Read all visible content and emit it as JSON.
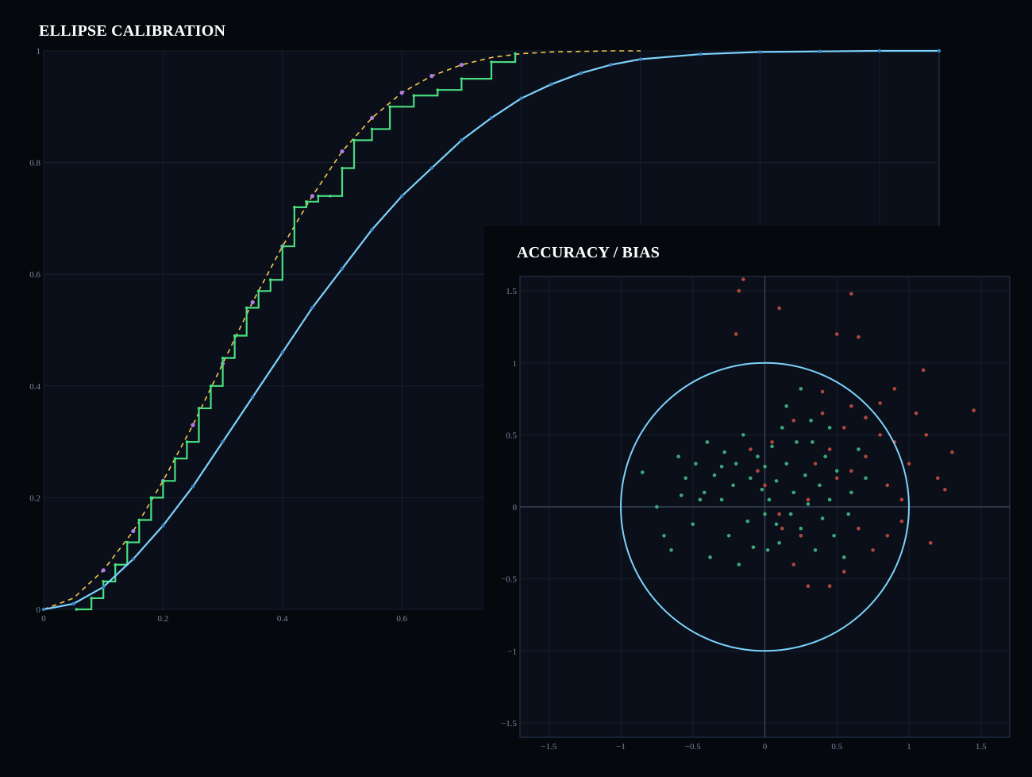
{
  "chart_data": [
    {
      "type": "line",
      "title": "ELLIPSE CALIBRATION",
      "xlabel": "",
      "ylabel": "",
      "xlim": [
        0,
        1.5
      ],
      "ylim": [
        0,
        1
      ],
      "x_ticks": [
        "0",
        "0.2",
        "0.4",
        "0.6"
      ],
      "y_ticks": [
        "0",
        "0.2",
        "0.4",
        "0.6",
        "0.8",
        "1"
      ],
      "grid": true,
      "legend": "none",
      "colors": {
        "theoretical": "#7dd3fc",
        "empirical": "#4ade80",
        "reference_dashed": "#f5c84c",
        "markers": "#b07ce6"
      },
      "series": [
        {
          "style": "solid-theoretical",
          "x": [
            0.0,
            0.05,
            0.1,
            0.15,
            0.2,
            0.25,
            0.3,
            0.35,
            0.4,
            0.45,
            0.5,
            0.55,
            0.6,
            0.65,
            0.7,
            0.75,
            0.8,
            0.85,
            0.9,
            0.95,
            1.0,
            1.1,
            1.2,
            1.3,
            1.4,
            1.5
          ],
          "y": [
            0.0,
            0.01,
            0.04,
            0.09,
            0.15,
            0.22,
            0.3,
            0.38,
            0.46,
            0.54,
            0.61,
            0.68,
            0.74,
            0.79,
            0.84,
            0.88,
            0.915,
            0.94,
            0.96,
            0.975,
            0.985,
            0.994,
            0.998,
            0.999,
            1.0,
            1.0
          ]
        },
        {
          "style": "empirical-step",
          "x": [
            0.055,
            0.08,
            0.1,
            0.12,
            0.14,
            0.16,
            0.18,
            0.2,
            0.22,
            0.24,
            0.26,
            0.28,
            0.3,
            0.32,
            0.34,
            0.36,
            0.38,
            0.4,
            0.42,
            0.44,
            0.46,
            0.48,
            0.5,
            0.52,
            0.55,
            0.58,
            0.62,
            0.66,
            0.7,
            0.75,
            0.79
          ],
          "y": [
            0.0,
            0.02,
            0.05,
            0.08,
            0.12,
            0.16,
            0.2,
            0.23,
            0.27,
            0.3,
            0.36,
            0.4,
            0.45,
            0.49,
            0.54,
            0.57,
            0.59,
            0.65,
            0.72,
            0.73,
            0.74,
            0.74,
            0.79,
            0.84,
            0.86,
            0.9,
            0.92,
            0.93,
            0.95,
            0.98,
            0.995
          ]
        },
        {
          "style": "dashed-reference",
          "x": [
            0.0,
            0.05,
            0.1,
            0.15,
            0.2,
            0.25,
            0.3,
            0.35,
            0.4,
            0.45,
            0.5,
            0.55,
            0.6,
            0.65,
            0.7,
            0.75,
            0.8,
            0.85,
            0.9,
            0.95,
            1.0
          ],
          "y": [
            0.0,
            0.02,
            0.07,
            0.14,
            0.23,
            0.33,
            0.44,
            0.55,
            0.65,
            0.74,
            0.82,
            0.88,
            0.925,
            0.955,
            0.975,
            0.988,
            0.995,
            0.998,
            0.999,
            1.0,
            1.0
          ]
        }
      ]
    },
    {
      "type": "scatter",
      "title": "ACCURACY / BIAS",
      "xlabel": "",
      "ylabel": "",
      "xlim": [
        -1.7,
        1.7
      ],
      "ylim": [
        -1.6,
        1.6
      ],
      "x_ticks": [
        "−1.5",
        "−1",
        "−0.5",
        "0",
        "0.5",
        "1",
        "1.5"
      ],
      "y_ticks": [
        "−1.5",
        "−1",
        "−0.5",
        "0",
        "0.5",
        "1",
        "1.5"
      ],
      "grid": true,
      "legend": "none",
      "unit_circle_radius": 1,
      "colors": {
        "circle": "#7dd3fc",
        "series_a": "#3fa67a",
        "series_b": "#b0473e"
      },
      "series": [
        {
          "style": "green",
          "points": [
            [
              -0.85,
              0.24
            ],
            [
              -0.6,
              0.35
            ],
            [
              -0.55,
              0.2
            ],
            [
              -0.48,
              0.3
            ],
            [
              -0.42,
              0.1
            ],
            [
              -0.4,
              0.45
            ],
            [
              -0.35,
              0.22
            ],
            [
              -0.3,
              0.05
            ],
            [
              -0.28,
              0.38
            ],
            [
              -0.22,
              0.15
            ],
            [
              -0.2,
              0.3
            ],
            [
              -0.15,
              0.5
            ],
            [
              -0.12,
              -0.1
            ],
            [
              -0.1,
              0.2
            ],
            [
              -0.05,
              0.35
            ],
            [
              -0.02,
              0.12
            ],
            [
              0.0,
              0.28
            ],
            [
              0.03,
              0.05
            ],
            [
              0.05,
              0.42
            ],
            [
              0.08,
              0.18
            ],
            [
              0.1,
              -0.25
            ],
            [
              0.12,
              0.55
            ],
            [
              0.15,
              0.3
            ],
            [
              0.18,
              -0.05
            ],
            [
              0.2,
              0.1
            ],
            [
              0.22,
              0.45
            ],
            [
              0.25,
              -0.15
            ],
            [
              0.28,
              0.22
            ],
            [
              0.3,
              0.02
            ],
            [
              0.32,
              0.6
            ],
            [
              0.35,
              -0.3
            ],
            [
              0.38,
              0.15
            ],
            [
              0.4,
              -0.08
            ],
            [
              0.42,
              0.35
            ],
            [
              0.45,
              0.05
            ],
            [
              0.48,
              -0.2
            ],
            [
              0.5,
              0.25
            ],
            [
              0.55,
              -0.35
            ],
            [
              0.6,
              0.1
            ],
            [
              0.65,
              0.4
            ],
            [
              -0.7,
              -0.2
            ],
            [
              -0.65,
              -0.3
            ],
            [
              -0.5,
              -0.12
            ],
            [
              -0.38,
              -0.35
            ],
            [
              -0.25,
              -0.2
            ],
            [
              -0.18,
              -0.4
            ],
            [
              -0.08,
              -0.28
            ],
            [
              0.02,
              -0.3
            ],
            [
              0.08,
              -0.12
            ],
            [
              0.15,
              0.7
            ],
            [
              0.25,
              0.82
            ],
            [
              0.0,
              -0.05
            ],
            [
              -0.3,
              0.28
            ],
            [
              -0.45,
              0.05
            ],
            [
              -0.58,
              0.08
            ],
            [
              -0.75,
              0.0
            ],
            [
              0.33,
              0.45
            ],
            [
              0.45,
              0.55
            ],
            [
              0.58,
              -0.05
            ],
            [
              0.7,
              0.2
            ]
          ]
        },
        {
          "style": "red",
          "points": [
            [
              -0.2,
              1.2
            ],
            [
              -0.15,
              1.58
            ],
            [
              -0.18,
              1.5
            ],
            [
              0.1,
              1.38
            ],
            [
              0.5,
              1.2
            ],
            [
              0.6,
              1.48
            ],
            [
              0.65,
              1.18
            ],
            [
              1.1,
              0.95
            ],
            [
              1.45,
              0.67
            ],
            [
              1.3,
              0.38
            ],
            [
              1.2,
              0.2
            ],
            [
              1.05,
              0.65
            ],
            [
              0.9,
              0.82
            ],
            [
              0.8,
              0.5
            ],
            [
              0.7,
              0.35
            ],
            [
              0.6,
              0.7
            ],
            [
              0.55,
              0.55
            ],
            [
              0.5,
              0.2
            ],
            [
              0.45,
              0.4
            ],
            [
              0.4,
              0.65
            ],
            [
              0.35,
              0.3
            ],
            [
              0.3,
              0.05
            ],
            [
              0.25,
              -0.2
            ],
            [
              0.2,
              0.6
            ],
            [
              0.15,
              0.3
            ],
            [
              0.1,
              -0.05
            ],
            [
              0.05,
              0.45
            ],
            [
              0.0,
              0.15
            ],
            [
              -0.05,
              0.25
            ],
            [
              -0.1,
              0.4
            ],
            [
              0.85,
              0.15
            ],
            [
              0.95,
              -0.1
            ],
            [
              1.0,
              0.3
            ],
            [
              0.75,
              -0.3
            ],
            [
              0.65,
              -0.15
            ],
            [
              0.55,
              -0.45
            ],
            [
              0.45,
              -0.55
            ],
            [
              0.3,
              -0.55
            ],
            [
              0.2,
              -0.4
            ],
            [
              0.12,
              -0.15
            ],
            [
              0.7,
              0.62
            ],
            [
              0.8,
              0.72
            ],
            [
              0.9,
              0.45
            ],
            [
              1.12,
              0.5
            ],
            [
              1.25,
              0.12
            ],
            [
              1.15,
              -0.25
            ],
            [
              0.95,
              0.05
            ],
            [
              0.85,
              -0.2
            ],
            [
              0.6,
              0.25
            ],
            [
              0.4,
              0.8
            ]
          ]
        }
      ]
    }
  ]
}
